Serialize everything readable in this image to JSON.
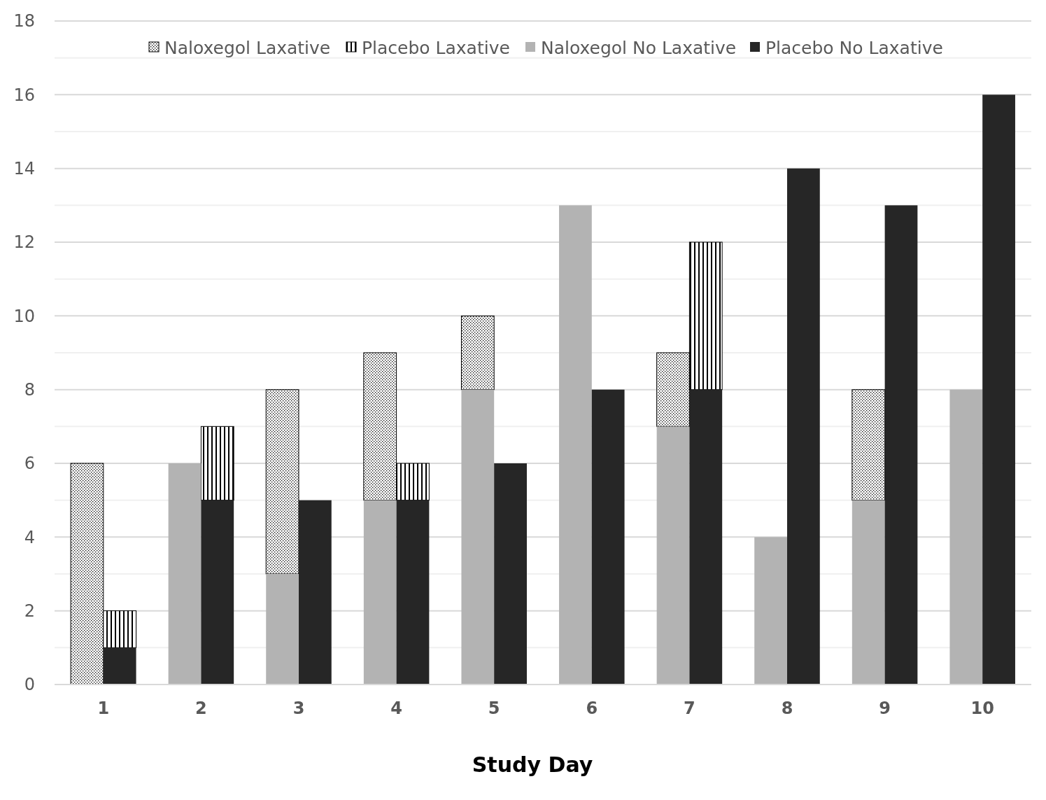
{
  "chart_data": {
    "type": "bar",
    "xlabel": "Study Day",
    "categories": [
      "1",
      "2",
      "3",
      "4",
      "5",
      "6",
      "7",
      "8",
      "9",
      "10"
    ],
    "series": [
      {
        "name": "Naloxegol Laxative",
        "color": "#000000",
        "values": [
          6,
          null,
          5,
          4,
          2,
          null,
          2,
          null,
          3,
          null
        ],
        "base": [
          0,
          null,
          3,
          5,
          8,
          null,
          7,
          null,
          5,
          null
        ]
      },
      {
        "name": "Placebo Laxative",
        "color": "#000000",
        "values": [
          1,
          2,
          null,
          1,
          null,
          null,
          4,
          null,
          null,
          null
        ],
        "base": [
          1,
          5,
          null,
          5,
          null,
          null,
          8,
          null,
          null,
          null
        ]
      },
      {
        "name": "Naloxegol No Laxative",
        "color": "#b3b3b3",
        "values": [
          null,
          6,
          3,
          5,
          8,
          13,
          7,
          4,
          5,
          8
        ]
      },
      {
        "name": "Placebo No Laxative",
        "color": "#262626",
        "values": [
          1,
          5,
          5,
          5,
          6,
          8,
          8,
          14,
          13,
          16
        ]
      }
    ],
    "ylim": [
      0,
      18
    ],
    "yticks": [
      0,
      {
        "value": 1,
        "label": null
      },
      2,
      {
        "value": 3,
        "label": null
      },
      4,
      {
        "value": 5,
        "label": null
      },
      6,
      {
        "value": 7,
        "label": null
      },
      8,
      {
        "value": 9,
        "label": null
      },
      10,
      {
        "value": 11,
        "label": null
      },
      12,
      {
        "value": 13,
        "label": null
      },
      14,
      {
        "value": 15,
        "label": null
      },
      16,
      {
        "value": 17,
        "label": null
      },
      18
    ],
    "grid": "y",
    "legend": "top"
  }
}
